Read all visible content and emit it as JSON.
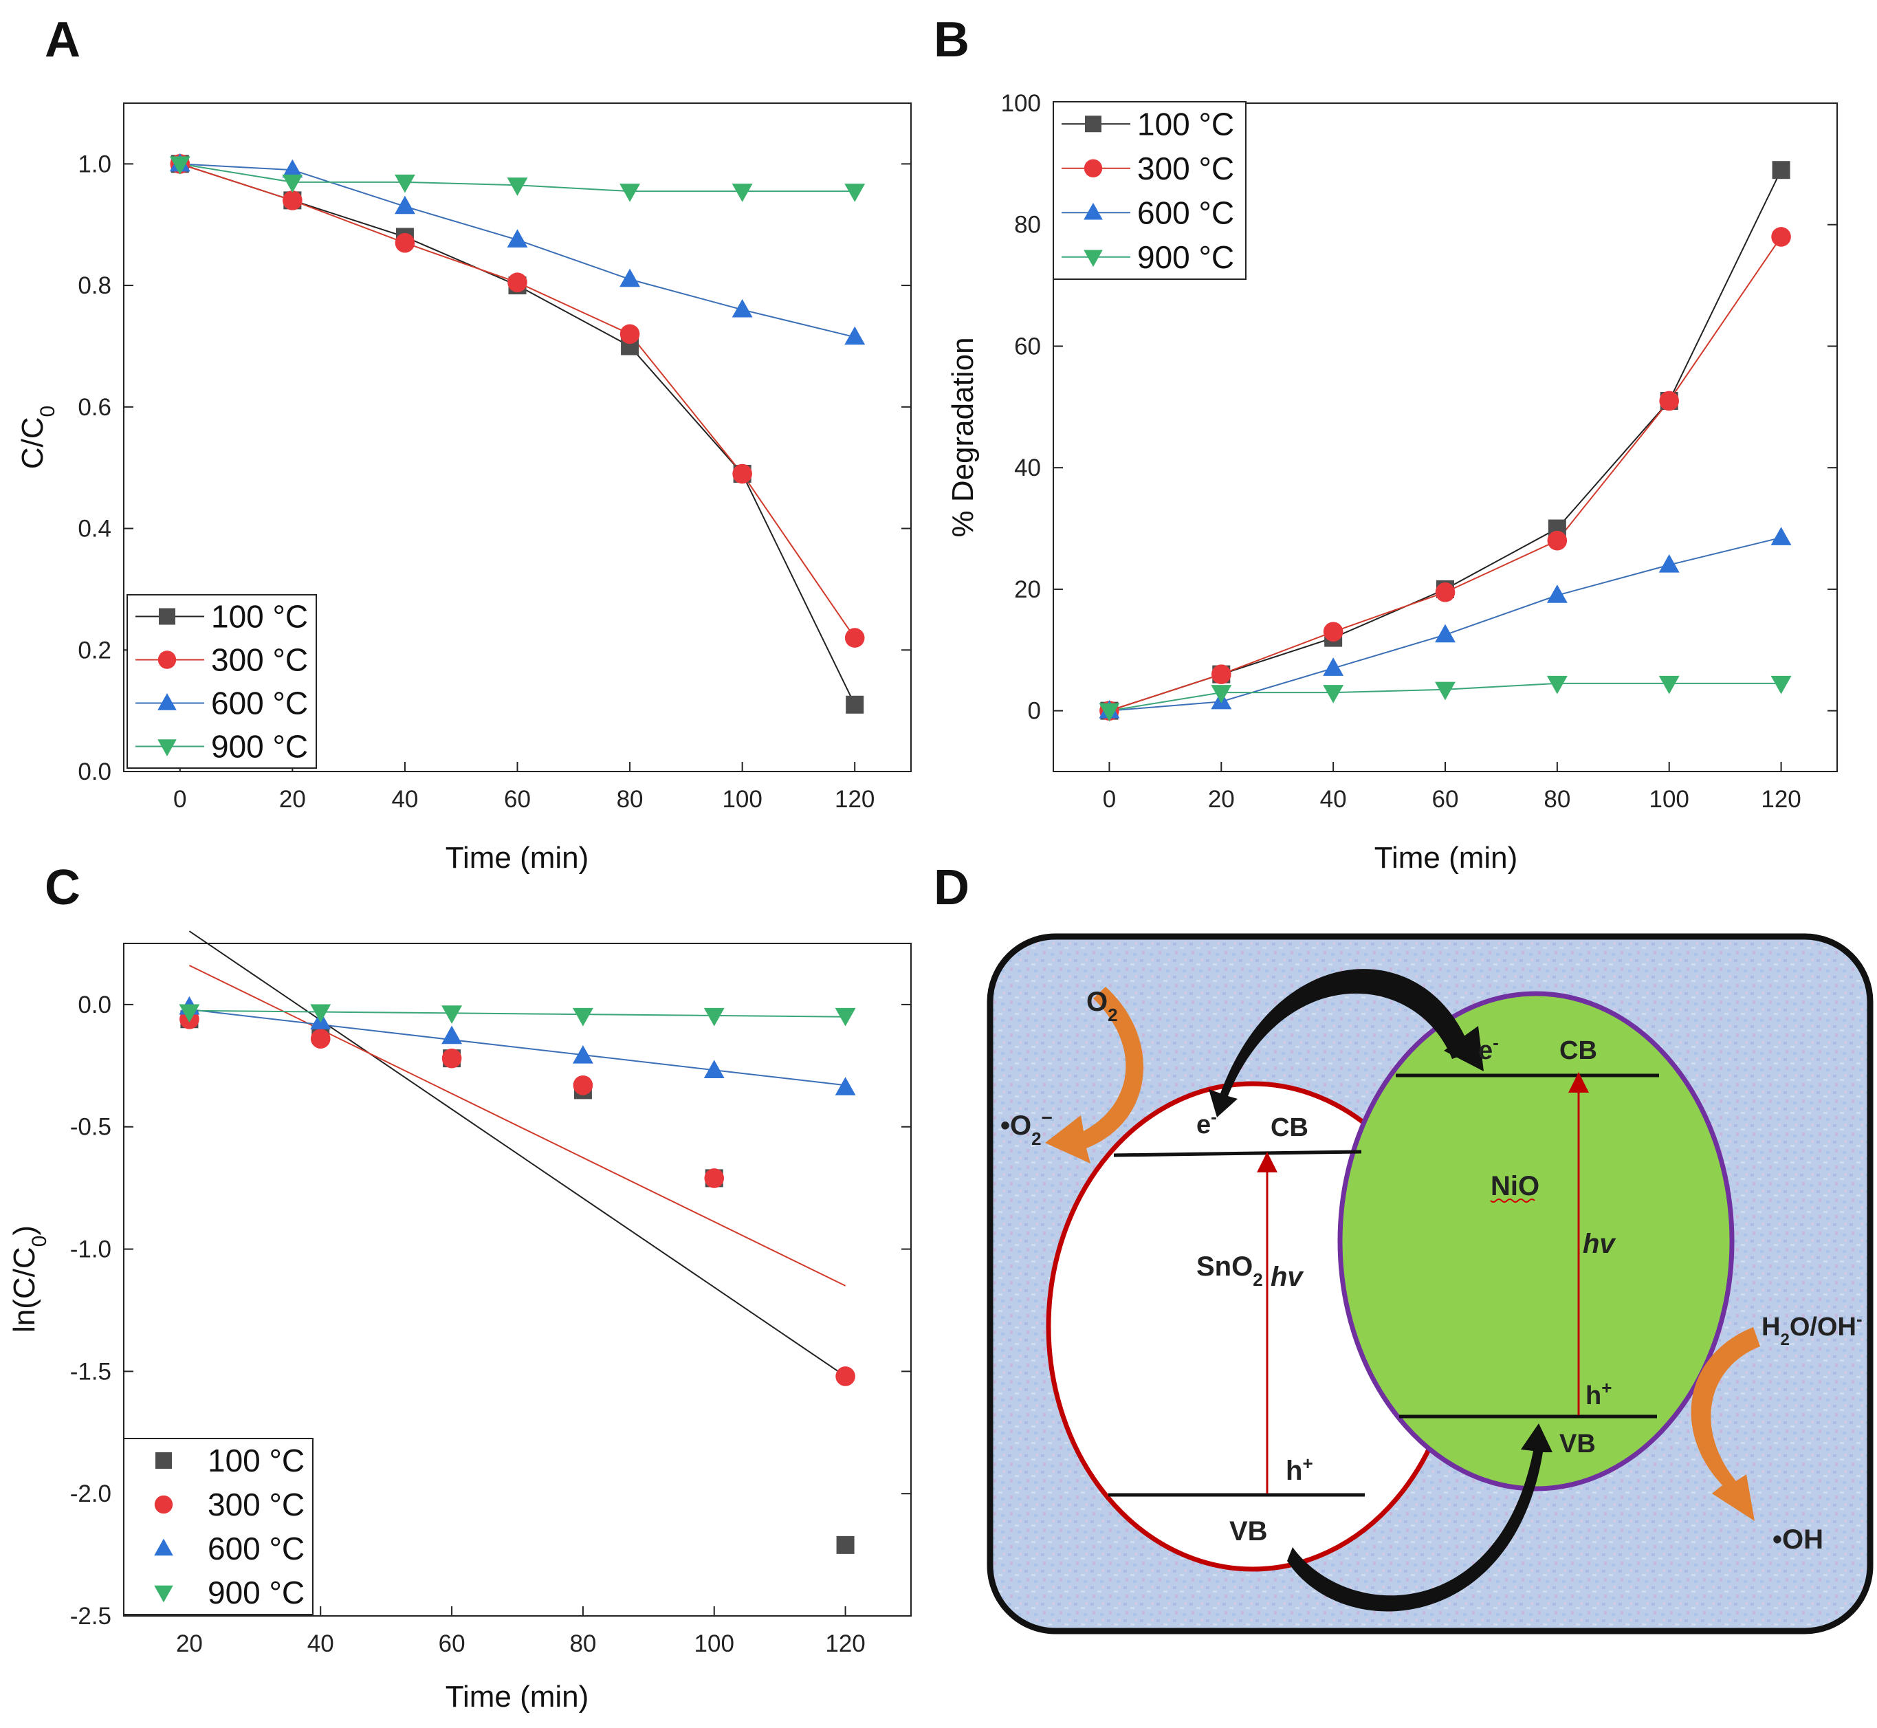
{
  "colors": {
    "s100": "#4d4d4d",
    "s300": "#e8373a",
    "s600": "#2f72d6",
    "s900": "#3bb26b",
    "line100": "#222222",
    "line300": "#d23a2c",
    "line600": "#3b6fb6",
    "line900": "#3aa67a",
    "bg_pattern": "#b9cbe8",
    "nio_fill": "#8fd14f",
    "nio_border": "#7030a0",
    "sno2_border": "#c00000",
    "arrow_orange": "#e27f2e",
    "hv_red": "#c00000"
  },
  "panels": {
    "A": {
      "letter": "A"
    },
    "B": {
      "letter": "B"
    },
    "C": {
      "letter": "C"
    },
    "D": {
      "letter": "D"
    }
  },
  "chart_data": [
    {
      "id": "A",
      "type": "line",
      "xlabel": "Time (min)",
      "ylabel": "C/C",
      "ylabel_sub": "0",
      "xlim": [
        -10,
        130
      ],
      "ylim": [
        0.0,
        1.1
      ],
      "xticks": [
        0,
        20,
        40,
        60,
        80,
        100,
        120
      ],
      "xtick_labels": [
        "0",
        "20",
        "40",
        "60",
        "80",
        "100",
        "120"
      ],
      "yticks": [
        0.0,
        0.2,
        0.4,
        0.6,
        0.8,
        1.0
      ],
      "ytick_labels": [
        "0.0",
        "0.2",
        "0.4",
        "0.6",
        "0.8",
        "1.0"
      ],
      "legend": {
        "position": "bottom-left",
        "entries": [
          "100 °C",
          "300 °C",
          "600 °C",
          "900 °C"
        ],
        "with_lines": true
      },
      "series": [
        {
          "name": "100 °C",
          "marker": "square",
          "x": [
            0,
            20,
            40,
            60,
            80,
            100,
            120
          ],
          "y": [
            1.0,
            0.94,
            0.88,
            0.8,
            0.7,
            0.49,
            0.11
          ]
        },
        {
          "name": "300 °C",
          "marker": "circle",
          "x": [
            0,
            20,
            40,
            60,
            80,
            100,
            120
          ],
          "y": [
            1.0,
            0.94,
            0.87,
            0.805,
            0.72,
            0.49,
            0.22
          ]
        },
        {
          "name": "600 °C",
          "marker": "triangle-up",
          "x": [
            0,
            20,
            40,
            60,
            80,
            100,
            120
          ],
          "y": [
            1.0,
            0.99,
            0.93,
            0.875,
            0.81,
            0.76,
            0.715
          ]
        },
        {
          "name": "900 °C",
          "marker": "triangle-down",
          "x": [
            0,
            20,
            40,
            60,
            80,
            100,
            120
          ],
          "y": [
            1.0,
            0.97,
            0.97,
            0.965,
            0.955,
            0.955,
            0.955
          ]
        }
      ]
    },
    {
      "id": "B",
      "type": "line",
      "xlabel": "Time (min)",
      "ylabel": "% Degradation",
      "ylabel_sub": "",
      "xlim": [
        -10,
        130
      ],
      "ylim": [
        -10,
        100
      ],
      "xticks": [
        0,
        20,
        40,
        60,
        80,
        100,
        120
      ],
      "xtick_labels": [
        "0",
        "20",
        "40",
        "60",
        "80",
        "100",
        "120"
      ],
      "yticks": [
        0,
        20,
        40,
        60,
        80,
        100
      ],
      "ytick_labels": [
        "0",
        "20",
        "40",
        "60",
        "80",
        "100"
      ],
      "legend": {
        "position": "top-left",
        "entries": [
          "100 °C",
          "300 °C",
          "600 °C",
          "900 °C"
        ],
        "with_lines": true
      },
      "series": [
        {
          "name": "100 °C",
          "marker": "square",
          "x": [
            0,
            20,
            40,
            60,
            80,
            100,
            120
          ],
          "y": [
            0,
            6,
            12,
            20,
            30,
            51,
            89
          ]
        },
        {
          "name": "300 °C",
          "marker": "circle",
          "x": [
            0,
            20,
            40,
            60,
            80,
            100,
            120
          ],
          "y": [
            0,
            6,
            13,
            19.5,
            28,
            51,
            78
          ]
        },
        {
          "name": "600 °C",
          "marker": "triangle-up",
          "x": [
            0,
            20,
            40,
            60,
            80,
            100,
            120
          ],
          "y": [
            0,
            1.5,
            7,
            12.5,
            19,
            24,
            28.5
          ]
        },
        {
          "name": "900 °C",
          "marker": "triangle-down",
          "x": [
            0,
            20,
            40,
            60,
            80,
            100,
            120
          ],
          "y": [
            0,
            3,
            3,
            3.5,
            4.5,
            4.5,
            4.5
          ]
        }
      ]
    },
    {
      "id": "C",
      "type": "scatter",
      "xlabel": "Time (min)",
      "ylabel": "ln(C/C",
      "ylabel_sub": "0",
      "ylabel_end": ")",
      "xlim": [
        10,
        130
      ],
      "ylim": [
        -2.5,
        0.25
      ],
      "xticks": [
        20,
        40,
        60,
        80,
        100,
        120
      ],
      "xtick_labels": [
        "20",
        "40",
        "60",
        "80",
        "100",
        "120"
      ],
      "yticks": [
        -2.5,
        -2.0,
        -1.5,
        -1.0,
        -0.5,
        0.0
      ],
      "ytick_labels": [
        "-2.5",
        "-2.0",
        "-1.5",
        "-1.0",
        "-0.5",
        "0.0"
      ],
      "legend": {
        "position": "bottom-left",
        "entries": [
          "100 °C",
          "300 °C",
          "600 °C",
          "900 °C"
        ],
        "with_lines": false
      },
      "series": [
        {
          "name": "100 °C",
          "marker": "square",
          "x": [
            20,
            40,
            60,
            80,
            100,
            120
          ],
          "y": [
            -0.06,
            -0.12,
            -0.22,
            -0.35,
            -0.71,
            -2.21
          ],
          "fit": {
            "x": [
              20,
              120
            ],
            "y": [
              0.3,
              -1.52
            ]
          }
        },
        {
          "name": "300 °C",
          "marker": "circle",
          "x": [
            20,
            40,
            60,
            80,
            100,
            120
          ],
          "y": [
            -0.06,
            -0.14,
            -0.22,
            -0.33,
            -0.71,
            -1.52
          ],
          "fit": {
            "x": [
              20,
              120
            ],
            "y": [
              0.16,
              -1.15
            ]
          }
        },
        {
          "name": "600 °C",
          "marker": "triangle-up",
          "x": [
            20,
            40,
            60,
            80,
            100,
            120
          ],
          "y": [
            -0.01,
            -0.07,
            -0.13,
            -0.21,
            -0.27,
            -0.34
          ],
          "fit": {
            "x": [
              20,
              120
            ],
            "y": [
              -0.02,
              -0.33
            ]
          }
        },
        {
          "name": "900 °C",
          "marker": "triangle-down",
          "x": [
            20,
            40,
            60,
            80,
            100,
            120
          ],
          "y": [
            -0.03,
            -0.03,
            -0.035,
            -0.045,
            -0.045,
            -0.045
          ],
          "fit": {
            "x": [
              20,
              120
            ],
            "y": [
              -0.025,
              -0.05
            ]
          }
        }
      ]
    }
  ],
  "diagram_d": {
    "o2": "O",
    "o2_sub": "2",
    "superoxide": "•O",
    "superoxide_sub": "2",
    "superoxide_sup": "−",
    "sno2": "SnO",
    "sno2_sub": "2",
    "nio": "NiO",
    "cb": "CB",
    "vb": "VB",
    "hv": "hv",
    "electron": "e",
    "electron_sup": "-",
    "hole": "h",
    "hole_sup": "+",
    "water": "H",
    "water_sub": "2",
    "water_rest": "O/OH",
    "water_sup": "-",
    "hydroxyl": "•OH"
  }
}
